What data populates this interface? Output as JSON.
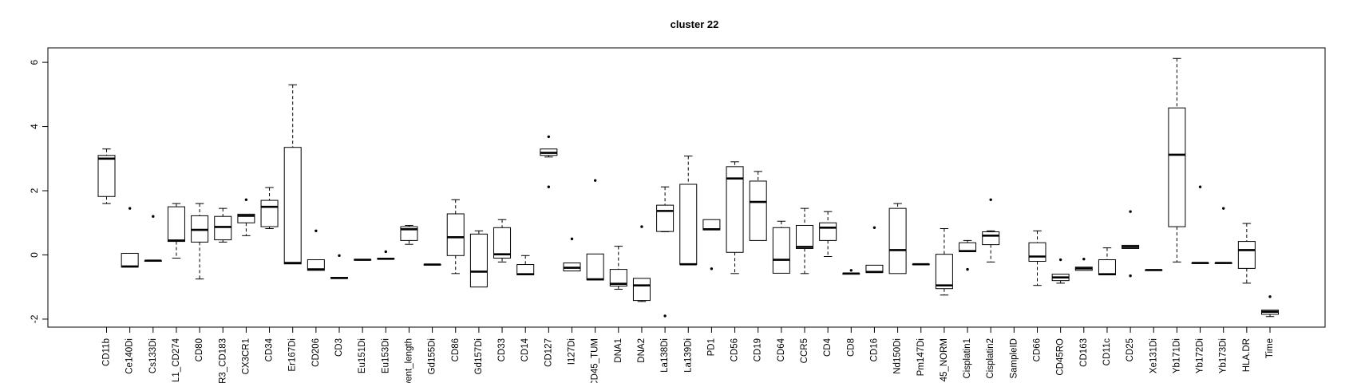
{
  "chart_data": {
    "type": "boxplot",
    "title": "cluster 22",
    "xlabel": "",
    "ylabel": "",
    "ylim": [
      -2.25,
      6.45
    ],
    "yticks": [
      -2,
      0,
      2,
      4,
      6
    ],
    "grid": false,
    "legend": "none",
    "colors": {
      "box_fill": "#ffffff",
      "stroke": "#000000",
      "background": "#ffffff"
    },
    "categories": [
      "CD11b",
      "Ce140Di",
      "Cs133Di",
      "L1_CD274",
      "CD80",
      "R3_CD183",
      "CX3CR1",
      "CD34",
      "Er167Di",
      "CD206",
      "CD3",
      "Eu151Di",
      "Eu153Di",
      "vent_length",
      "Gd155Di",
      "CD86",
      "Gd157Di",
      "CD33",
      "CD14",
      "CD127",
      "I127Di",
      "CD45_TUM",
      "DNA1",
      "DNA2",
      "La138Di",
      "La139Di",
      "PD1",
      "CD56",
      "CD19",
      "CD64",
      "CCR5",
      "CD4",
      "CD8",
      "CD16",
      "Nd150Di",
      "Pm147Di",
      "45_NORM",
      "Cisplatin1",
      "Cisplatin2",
      "SampleID",
      "CD66",
      "CD45RO",
      "CD163",
      "CD11c",
      "CD25",
      "Xe131Di",
      "Yb171Di",
      "Yb172Di",
      "Yb173Di",
      "HLA.DR",
      "Time"
    ],
    "boxes": [
      {
        "min": 1.6,
        "q1": 1.82,
        "median": 3.0,
        "q3": 3.1,
        "max": 3.3,
        "outliers": []
      },
      {
        "min": -0.38,
        "q1": -0.38,
        "median": -0.36,
        "q3": 0.05,
        "max": 0.05,
        "outliers": [
          1.45
        ]
      },
      {
        "min": -0.2,
        "q1": -0.2,
        "median": -0.18,
        "q3": -0.18,
        "max": -0.18,
        "outliers": [
          1.2
        ]
      },
      {
        "min": -0.1,
        "q1": 0.42,
        "median": 0.45,
        "q3": 1.5,
        "max": 1.6,
        "outliers": []
      },
      {
        "min": -0.75,
        "q1": 0.4,
        "median": 0.78,
        "q3": 1.22,
        "max": 1.6,
        "outliers": []
      },
      {
        "min": 0.4,
        "q1": 0.47,
        "median": 0.87,
        "q3": 1.2,
        "max": 1.45,
        "outliers": []
      },
      {
        "min": 0.6,
        "q1": 1.0,
        "median": 1.22,
        "q3": 1.27,
        "max": 1.27,
        "outliers": [
          1.72
        ]
      },
      {
        "min": 0.82,
        "q1": 0.88,
        "median": 1.5,
        "q3": 1.7,
        "max": 2.1,
        "outliers": []
      },
      {
        "min": -0.28,
        "q1": -0.28,
        "median": -0.25,
        "q3": 3.35,
        "max": 5.3,
        "outliers": []
      },
      {
        "min": -0.48,
        "q1": -0.48,
        "median": -0.45,
        "q3": -0.15,
        "max": -0.15,
        "outliers": [
          0.75
        ]
      },
      {
        "min": -0.73,
        "q1": -0.73,
        "median": -0.72,
        "q3": -0.7,
        "max": -0.7,
        "outliers": [
          -0.02
        ]
      },
      {
        "min": -0.16,
        "q1": -0.16,
        "median": -0.15,
        "q3": -0.14,
        "max": -0.14,
        "outliers": []
      },
      {
        "min": -0.13,
        "q1": -0.13,
        "median": -0.12,
        "q3": -0.11,
        "max": -0.11,
        "outliers": [
          0.1
        ]
      },
      {
        "min": 0.33,
        "q1": 0.45,
        "median": 0.8,
        "q3": 0.88,
        "max": 0.92,
        "outliers": []
      },
      {
        "min": -0.31,
        "q1": -0.31,
        "median": -0.3,
        "q3": -0.3,
        "max": -0.3,
        "outliers": []
      },
      {
        "min": -0.58,
        "q1": -0.02,
        "median": 0.55,
        "q3": 1.28,
        "max": 1.72,
        "outliers": []
      },
      {
        "min": -1.0,
        "q1": -1.0,
        "median": -0.52,
        "q3": 0.65,
        "max": 0.75,
        "outliers": []
      },
      {
        "min": -0.22,
        "q1": -0.1,
        "median": 0.02,
        "q3": 0.85,
        "max": 1.1,
        "outliers": []
      },
      {
        "min": -0.62,
        "q1": -0.62,
        "median": -0.6,
        "q3": -0.3,
        "max": -0.02,
        "outliers": []
      },
      {
        "min": 3.05,
        "q1": 3.1,
        "median": 3.18,
        "q3": 3.3,
        "max": 3.3,
        "outliers": [
          3.68,
          2.12
        ]
      },
      {
        "min": -0.5,
        "q1": -0.5,
        "median": -0.4,
        "q3": -0.25,
        "max": -0.25,
        "outliers": [
          0.5
        ]
      },
      {
        "min": -0.78,
        "q1": -0.78,
        "median": -0.76,
        "q3": 0.03,
        "max": 0.03,
        "outliers": [
          2.32
        ]
      },
      {
        "min": -1.07,
        "q1": -0.97,
        "median": -0.9,
        "q3": -0.45,
        "max": 0.27,
        "outliers": []
      },
      {
        "min": -1.45,
        "q1": -1.42,
        "median": -0.95,
        "q3": -0.73,
        "max": -0.73,
        "outliers": [
          0.88
        ]
      },
      {
        "min": 0.72,
        "q1": 0.73,
        "median": 1.37,
        "q3": 1.55,
        "max": 2.12,
        "outliers": [
          -1.9
        ]
      },
      {
        "min": -0.3,
        "q1": -0.3,
        "median": -0.29,
        "q3": 2.2,
        "max": 3.08,
        "outliers": []
      },
      {
        "min": 0.78,
        "q1": 0.78,
        "median": 0.8,
        "q3": 1.1,
        "max": 1.1,
        "outliers": [
          -0.43
        ]
      },
      {
        "min": -0.58,
        "q1": 0.08,
        "median": 2.38,
        "q3": 2.75,
        "max": 2.9,
        "outliers": []
      },
      {
        "min": 0.45,
        "q1": 0.45,
        "median": 1.65,
        "q3": 2.3,
        "max": 2.6,
        "outliers": []
      },
      {
        "min": -0.57,
        "q1": -0.57,
        "median": -0.15,
        "q3": 0.85,
        "max": 1.05,
        "outliers": []
      },
      {
        "min": -0.58,
        "q1": 0.2,
        "median": 0.25,
        "q3": 0.92,
        "max": 1.45,
        "outliers": []
      },
      {
        "min": -0.05,
        "q1": 0.45,
        "median": 0.85,
        "q3": 1.0,
        "max": 1.35,
        "outliers": []
      },
      {
        "min": -0.6,
        "q1": -0.6,
        "median": -0.58,
        "q3": -0.58,
        "max": -0.58,
        "outliers": [
          -0.48
        ]
      },
      {
        "min": -0.55,
        "q1": -0.55,
        "median": -0.53,
        "q3": -0.32,
        "max": -0.32,
        "outliers": [
          0.85
        ]
      },
      {
        "min": -0.58,
        "q1": -0.58,
        "median": 0.15,
        "q3": 1.45,
        "max": 1.6,
        "outliers": []
      },
      {
        "min": -0.3,
        "q1": -0.3,
        "median": -0.29,
        "q3": -0.29,
        "max": -0.29,
        "outliers": []
      },
      {
        "min": -1.25,
        "q1": -1.05,
        "median": -0.95,
        "q3": 0.02,
        "max": 0.82,
        "outliers": []
      },
      {
        "min": 0.1,
        "q1": 0.1,
        "median": 0.12,
        "q3": 0.38,
        "max": 0.45,
        "outliers": [
          -0.45
        ]
      },
      {
        "min": -0.22,
        "q1": 0.32,
        "median": 0.6,
        "q3": 0.72,
        "max": 0.75,
        "outliers": [
          1.72
        ]
      },
      {
        "min": null,
        "q1": null,
        "median": null,
        "q3": null,
        "max": null,
        "outliers": []
      },
      {
        "min": -0.95,
        "q1": -0.2,
        "median": -0.05,
        "q3": 0.38,
        "max": 0.75,
        "outliers": []
      },
      {
        "min": -0.88,
        "q1": -0.8,
        "median": -0.7,
        "q3": -0.6,
        "max": -0.6,
        "outliers": [
          -0.15
        ]
      },
      {
        "min": -0.48,
        "q1": -0.48,
        "median": -0.42,
        "q3": -0.38,
        "max": -0.38,
        "outliers": [
          -0.13
        ]
      },
      {
        "min": -0.62,
        "q1": -0.62,
        "median": -0.6,
        "q3": -0.15,
        "max": 0.22,
        "outliers": []
      },
      {
        "min": 0.2,
        "q1": 0.2,
        "median": 0.25,
        "q3": 0.3,
        "max": 0.3,
        "outliers": [
          1.35,
          -0.65
        ]
      },
      {
        "min": -0.48,
        "q1": -0.48,
        "median": -0.47,
        "q3": -0.47,
        "max": -0.47,
        "outliers": []
      },
      {
        "min": -0.22,
        "q1": 0.88,
        "median": 3.12,
        "q3": 4.58,
        "max": 6.12,
        "outliers": []
      },
      {
        "min": -0.26,
        "q1": -0.26,
        "median": -0.25,
        "q3": -0.25,
        "max": -0.25,
        "outliers": [
          2.12
        ]
      },
      {
        "min": -0.26,
        "q1": -0.26,
        "median": -0.25,
        "q3": -0.25,
        "max": -0.25,
        "outliers": [
          1.45
        ]
      },
      {
        "min": -0.88,
        "q1": -0.42,
        "median": 0.15,
        "q3": 0.42,
        "max": 0.98,
        "outliers": []
      },
      {
        "min": -1.92,
        "q1": -1.85,
        "median": -1.77,
        "q3": -1.72,
        "max": -1.72,
        "outliers": [
          -1.3
        ]
      }
    ]
  }
}
